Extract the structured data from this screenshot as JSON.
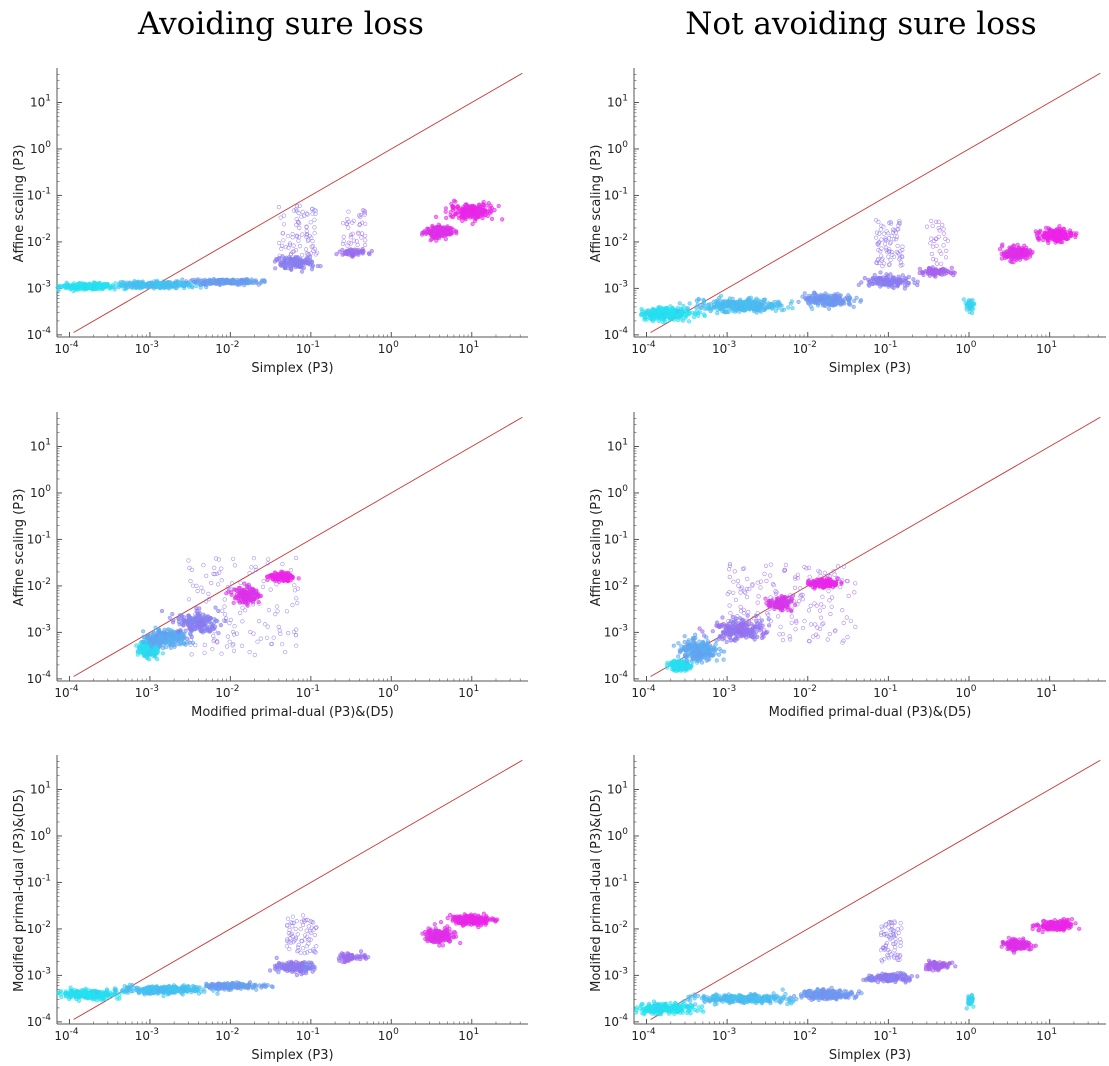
{
  "columns": [
    "Avoiding sure loss",
    "Not avoiding sure loss"
  ],
  "colors": {
    "reference_line": "#cc3333",
    "axis": "#555555",
    "low": "#22e4f0",
    "high": "#f020e8"
  },
  "chart_data": [
    {
      "type": "scatter",
      "column": "Avoiding sure loss",
      "row": 1,
      "xlabel": "Simplex (P3)",
      "ylabel": "Affine scaling (P3)",
      "xscale": "log",
      "yscale": "log",
      "xlim": [
        7e-05,
        50
      ],
      "ylim": [
        9e-05,
        50
      ],
      "xticks": [
        -4,
        -3,
        -2,
        -1,
        0,
        1
      ],
      "yticks": [
        -4,
        -3,
        -2,
        -1,
        0,
        1
      ],
      "reference_line": "y = x",
      "grid": false,
      "clusters": [
        {
          "x": [
            7e-05,
            0.0004
          ],
          "y": [
            0.00095,
            0.0013
          ],
          "color": 0.02,
          "n": 260
        },
        {
          "x": [
            0.0004,
            0.004
          ],
          "y": [
            0.001,
            0.0014
          ],
          "color": 0.18,
          "n": 320
        },
        {
          "x": [
            0.003,
            0.025
          ],
          "y": [
            0.0012,
            0.0016
          ],
          "color": 0.35,
          "n": 220
        },
        {
          "x": [
            0.035,
            0.12
          ],
          "y": [
            0.0025,
            0.005
          ],
          "color": 0.52,
          "n": 130
        },
        {
          "x": [
            0.04,
            0.12
          ],
          "y": [
            0.005,
            0.06
          ],
          "color": 0.55,
          "n": 80,
          "sparse": true
        },
        {
          "x": [
            0.2,
            0.5
          ],
          "y": [
            0.005,
            0.007
          ],
          "color": 0.6,
          "n": 60
        },
        {
          "x": [
            0.25,
            0.5
          ],
          "y": [
            0.008,
            0.05
          ],
          "color": 0.6,
          "n": 40,
          "sparse": true
        },
        {
          "x": [
            2.5,
            6
          ],
          "y": [
            0.012,
            0.022
          ],
          "color": 0.92,
          "n": 200
        },
        {
          "x": [
            5,
            20
          ],
          "y": [
            0.03,
            0.07
          ],
          "color": 0.98,
          "n": 220
        }
      ]
    },
    {
      "type": "scatter",
      "column": "Not avoiding sure loss",
      "row": 1,
      "xlabel": "Simplex (P3)",
      "ylabel": "Affine scaling (P3)",
      "xscale": "log",
      "yscale": "log",
      "xlim": [
        7e-05,
        50
      ],
      "ylim": [
        9e-05,
        50
      ],
      "xticks": [
        -4,
        -3,
        -2,
        -1,
        0,
        1
      ],
      "yticks": [
        -4,
        -3,
        -2,
        -1,
        0,
        1
      ],
      "reference_line": "y = x",
      "grid": false,
      "clusters": [
        {
          "x": [
            7e-05,
            0.0004
          ],
          "y": [
            0.0002,
            0.0004
          ],
          "color": 0.02,
          "n": 260
        },
        {
          "x": [
            0.0004,
            0.006
          ],
          "y": [
            0.0003,
            0.0006
          ],
          "color": 0.2,
          "n": 320
        },
        {
          "x": [
            0.008,
            0.04
          ],
          "y": [
            0.0004,
            0.0008
          ],
          "color": 0.38,
          "n": 200
        },
        {
          "x": [
            0.05,
            0.2
          ],
          "y": [
            0.001,
            0.002
          ],
          "color": 0.52,
          "n": 140
        },
        {
          "x": [
            0.07,
            0.15
          ],
          "y": [
            0.003,
            0.03
          ],
          "color": 0.55,
          "n": 80,
          "sparse": true
        },
        {
          "x": [
            0.25,
            0.6
          ],
          "y": [
            0.0018,
            0.0028
          ],
          "color": 0.65,
          "n": 90
        },
        {
          "x": [
            0.3,
            0.55
          ],
          "y": [
            0.003,
            0.03
          ],
          "color": 0.62,
          "n": 30,
          "sparse": true
        },
        {
          "x": [
            0.9,
            1.2
          ],
          "y": [
            0.0003,
            0.0006
          ],
          "color": 0.08,
          "n": 30
        },
        {
          "x": [
            2.5,
            6
          ],
          "y": [
            0.004,
            0.008
          ],
          "color": 0.92,
          "n": 200
        },
        {
          "x": [
            7,
            20
          ],
          "y": [
            0.01,
            0.02
          ],
          "color": 0.98,
          "n": 220
        }
      ]
    },
    {
      "type": "scatter",
      "column": "Avoiding sure loss",
      "row": 2,
      "xlabel": "Modified primal-dual (P3)&(D5)",
      "ylabel": "Affine scaling (P3)",
      "xscale": "log",
      "yscale": "log",
      "xlim": [
        7e-05,
        50
      ],
      "ylim": [
        9e-05,
        50
      ],
      "xticks": [
        -4,
        -3,
        -2,
        -1,
        0,
        1
      ],
      "yticks": [
        -4,
        -3,
        -2,
        -1,
        0,
        1
      ],
      "reference_line": "y = x",
      "grid": false,
      "clusters": [
        {
          "x": [
            0.0007,
            0.0013
          ],
          "y": [
            0.0003,
            0.0007
          ],
          "color": 0.05,
          "n": 260
        },
        {
          "x": [
            0.0009,
            0.003
          ],
          "y": [
            0.0005,
            0.0012
          ],
          "color": 0.3,
          "n": 260
        },
        {
          "x": [
            0.002,
            0.008
          ],
          "y": [
            0.0009,
            0.003
          ],
          "color": 0.5,
          "n": 180
        },
        {
          "x": [
            0.003,
            0.07
          ],
          "y": [
            0.0003,
            0.04
          ],
          "color": 0.55,
          "n": 140,
          "sparse": true
        },
        {
          "x": [
            0.01,
            0.025
          ],
          "y": [
            0.004,
            0.01
          ],
          "color": 0.9,
          "n": 130
        },
        {
          "x": [
            0.03,
            0.06
          ],
          "y": [
            0.012,
            0.02
          ],
          "color": 0.98,
          "n": 120
        }
      ]
    },
    {
      "type": "scatter",
      "column": "Not avoiding sure loss",
      "row": 2,
      "xlabel": "Modified primal-dual (P3)&(D5)",
      "ylabel": "Affine scaling (P3)",
      "xscale": "log",
      "yscale": "log",
      "xlim": [
        7e-05,
        50
      ],
      "ylim": [
        9e-05,
        50
      ],
      "xticks": [
        -4,
        -3,
        -2,
        -1,
        0,
        1
      ],
      "yticks": [
        -4,
        -3,
        -2,
        -1,
        0,
        1
      ],
      "reference_line": "y = x",
      "grid": false,
      "clusters": [
        {
          "x": [
            0.0002,
            0.00035
          ],
          "y": [
            0.00015,
            0.00025
          ],
          "color": 0.03,
          "n": 220
        },
        {
          "x": [
            0.00025,
            0.0008
          ],
          "y": [
            0.00025,
            0.0007
          ],
          "color": 0.3,
          "n": 260
        },
        {
          "x": [
            0.0006,
            0.003
          ],
          "y": [
            0.0006,
            0.002
          ],
          "color": 0.55,
          "n": 200
        },
        {
          "x": [
            0.001,
            0.04
          ],
          "y": [
            0.0006,
            0.03
          ],
          "color": 0.6,
          "n": 180,
          "sparse": true
        },
        {
          "x": [
            0.003,
            0.007
          ],
          "y": [
            0.003,
            0.006
          ],
          "color": 0.88,
          "n": 120
        },
        {
          "x": [
            0.01,
            0.025
          ],
          "y": [
            0.009,
            0.014
          ],
          "color": 0.98,
          "n": 120
        }
      ]
    },
    {
      "type": "scatter",
      "column": "Avoiding sure loss",
      "row": 3,
      "xlabel": "Simplex (P3)",
      "ylabel": "Modified primal-dual (P3)&(D5)",
      "xscale": "log",
      "yscale": "log",
      "xlim": [
        7e-05,
        50
      ],
      "ylim": [
        9e-05,
        50
      ],
      "xticks": [
        -4,
        -3,
        -2,
        -1,
        0,
        1
      ],
      "yticks": [
        -4,
        -3,
        -2,
        -1,
        0,
        1
      ],
      "reference_line": "y = x",
      "grid": false,
      "clusters": [
        {
          "x": [
            7e-05,
            0.0004
          ],
          "y": [
            0.0003,
            0.0005
          ],
          "color": 0.02,
          "n": 260
        },
        {
          "x": [
            0.0004,
            0.005
          ],
          "y": [
            0.0004,
            0.0006
          ],
          "color": 0.18,
          "n": 320
        },
        {
          "x": [
            0.004,
            0.025
          ],
          "y": [
            0.0005,
            0.0007
          ],
          "color": 0.35,
          "n": 200
        },
        {
          "x": [
            0.035,
            0.12
          ],
          "y": [
            0.0011,
            0.002
          ],
          "color": 0.52,
          "n": 130
        },
        {
          "x": [
            0.05,
            0.12
          ],
          "y": [
            0.003,
            0.02
          ],
          "color": 0.55,
          "n": 70,
          "sparse": true
        },
        {
          "x": [
            0.2,
            0.5
          ],
          "y": [
            0.002,
            0.003
          ],
          "color": 0.6,
          "n": 60
        },
        {
          "x": [
            2.5,
            6
          ],
          "y": [
            0.005,
            0.01
          ],
          "color": 0.92,
          "n": 200
        },
        {
          "x": [
            5,
            20
          ],
          "y": [
            0.012,
            0.02
          ],
          "color": 0.98,
          "n": 220
        }
      ]
    },
    {
      "type": "scatter",
      "column": "Not avoiding sure loss",
      "row": 3,
      "xlabel": "Simplex (P3)",
      "ylabel": "Modified primal-dual (P3)&(D5)",
      "xscale": "log",
      "yscale": "log",
      "xlim": [
        7e-05,
        50
      ],
      "ylim": [
        9e-05,
        50
      ],
      "xticks": [
        -4,
        -3,
        -2,
        -1,
        0,
        1
      ],
      "yticks": [
        -4,
        -3,
        -2,
        -1,
        0,
        1
      ],
      "reference_line": "y = x",
      "grid": false,
      "clusters": [
        {
          "x": [
            7e-05,
            0.0004
          ],
          "y": [
            0.00015,
            0.00025
          ],
          "color": 0.02,
          "n": 260
        },
        {
          "x": [
            0.0004,
            0.006
          ],
          "y": [
            0.00025,
            0.0004
          ],
          "color": 0.2,
          "n": 320
        },
        {
          "x": [
            0.008,
            0.04
          ],
          "y": [
            0.0003,
            0.0005
          ],
          "color": 0.38,
          "n": 200
        },
        {
          "x": [
            0.05,
            0.2
          ],
          "y": [
            0.0007,
            0.0011
          ],
          "color": 0.52,
          "n": 140
        },
        {
          "x": [
            0.08,
            0.15
          ],
          "y": [
            0.002,
            0.015
          ],
          "color": 0.55,
          "n": 70,
          "sparse": true
        },
        {
          "x": [
            0.25,
            0.6
          ],
          "y": [
            0.0013,
            0.002
          ],
          "color": 0.65,
          "n": 90
        },
        {
          "x": [
            0.9,
            1.2
          ],
          "y": [
            0.0002,
            0.0004
          ],
          "color": 0.08,
          "n": 30
        },
        {
          "x": [
            2.5,
            6
          ],
          "y": [
            0.0035,
            0.006
          ],
          "color": 0.92,
          "n": 200
        },
        {
          "x": [
            7,
            20
          ],
          "y": [
            0.009,
            0.015
          ],
          "color": 0.98,
          "n": 220
        }
      ]
    }
  ]
}
